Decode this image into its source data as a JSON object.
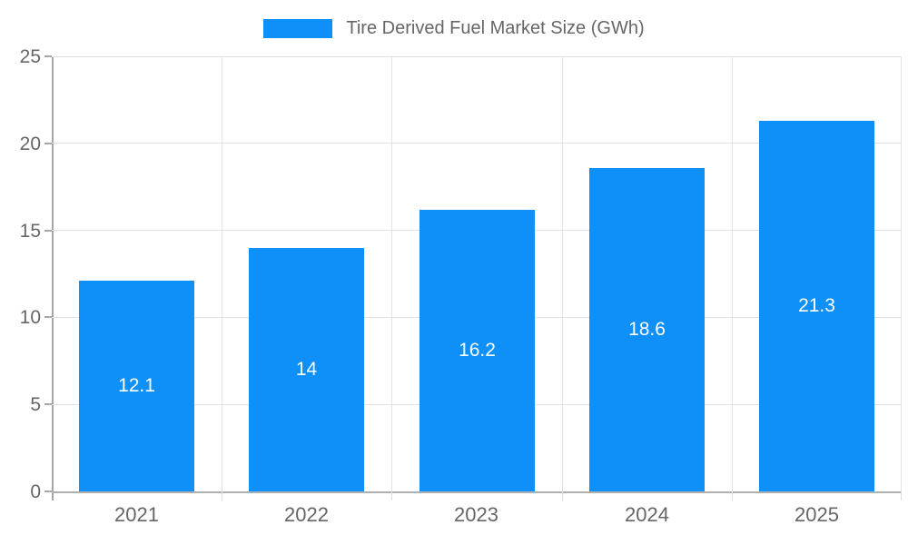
{
  "chart_data": {
    "type": "bar",
    "categories": [
      "2021",
      "2022",
      "2023",
      "2024",
      "2025"
    ],
    "series": [
      {
        "name": "Tire Derived Fuel Market Size (GWh)",
        "values": [
          12.1,
          14,
          16.2,
          18.6,
          21.3
        ]
      }
    ],
    "value_labels": [
      "12.1",
      "14",
      "16.2",
      "18.6",
      "21.3"
    ],
    "title": "",
    "xlabel": "",
    "ylabel": "",
    "ylim": [
      0,
      25
    ],
    "yticks": [
      0,
      5,
      10,
      15,
      20,
      25
    ],
    "grid": true,
    "legend_position": "top-center",
    "colors": {
      "bar": "#0e90f8",
      "grid": "#e3e3e3",
      "axis": "#a6a6a6",
      "tick_label": "#666666",
      "value_label": "#ffffff",
      "legend_text": "#666666",
      "background": "#ffffff"
    }
  }
}
